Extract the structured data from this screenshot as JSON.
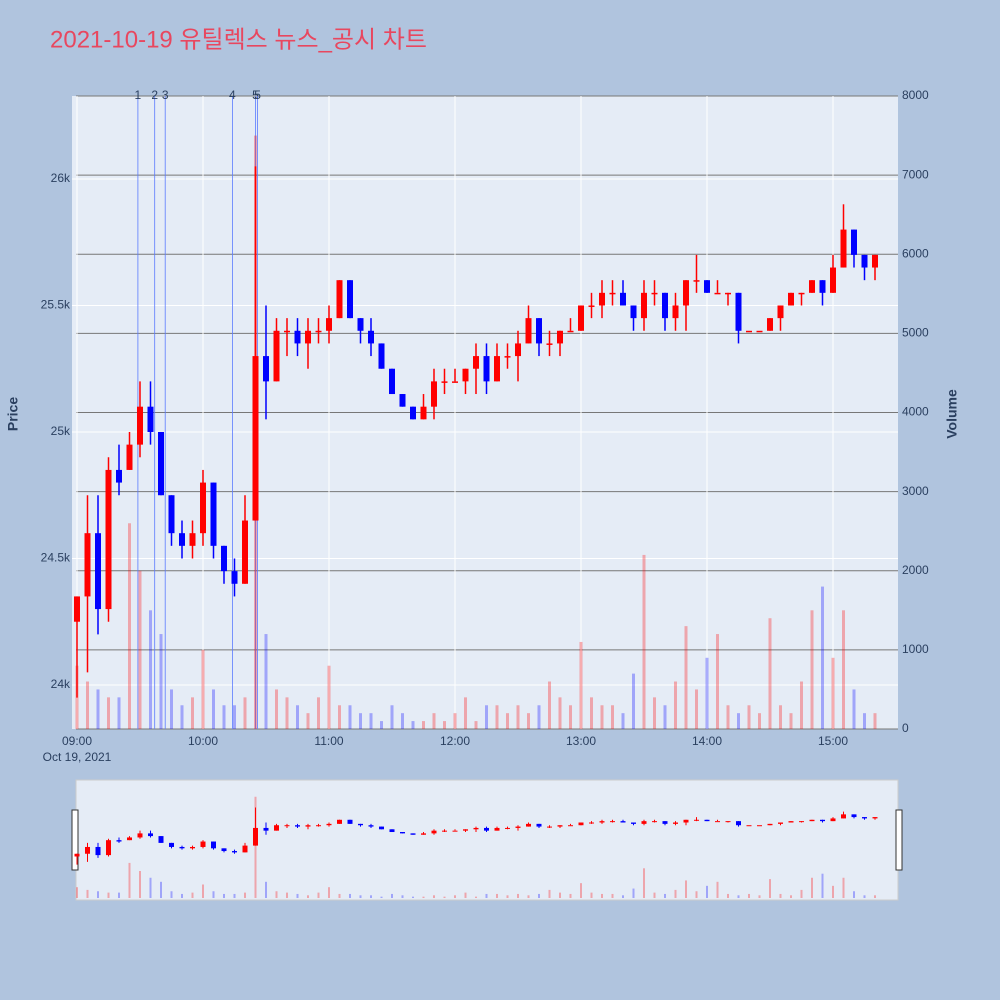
{
  "chart_data": {
    "type": "candlestick",
    "title": "2021-10-19 유틸렉스 뉴스_공시 차트",
    "y_label": "Price",
    "y2_label": "Volume",
    "x_date_label": "Oct 19, 2021",
    "increasing_color": "#ff0000",
    "decreasing_color": "#0000ff",
    "x": [
      "09:00",
      "09:05",
      "09:10",
      "09:15",
      "09:20",
      "09:25",
      "09:30",
      "09:35",
      "09:40",
      "09:45",
      "09:50",
      "09:55",
      "10:00",
      "10:05",
      "10:10",
      "10:15",
      "10:20",
      "10:25",
      "10:30",
      "10:35",
      "10:40",
      "10:45",
      "10:50",
      "10:55",
      "11:00",
      "11:05",
      "11:10",
      "11:15",
      "11:20",
      "11:25",
      "11:30",
      "11:35",
      "11:40",
      "11:45",
      "11:50",
      "11:55",
      "12:00",
      "12:05",
      "12:10",
      "12:15",
      "12:20",
      "12:25",
      "12:30",
      "12:35",
      "12:40",
      "12:45",
      "12:50",
      "12:55",
      "13:00",
      "13:05",
      "13:10",
      "13:15",
      "13:20",
      "13:25",
      "13:30",
      "13:35",
      "13:40",
      "13:45",
      "13:50",
      "13:55",
      "14:00",
      "14:05",
      "14:10",
      "14:15",
      "14:20",
      "14:25",
      "14:30",
      "14:35",
      "14:40",
      "14:45",
      "14:50",
      "14:55",
      "15:00",
      "15:05",
      "15:10",
      "15:15",
      "15:20"
    ],
    "open": [
      24250,
      24350,
      24600,
      24300,
      24850,
      24850,
      24950,
      25100,
      25000,
      24750,
      24600,
      24550,
      24600,
      24800,
      24550,
      24450,
      24400,
      24650,
      25300,
      25200,
      25400,
      25400,
      25350,
      25400,
      25400,
      25450,
      25600,
      25450,
      25400,
      25350,
      25250,
      25150,
      25100,
      25050,
      25100,
      25200,
      25200,
      25200,
      25250,
      25300,
      25200,
      25300,
      25300,
      25350,
      25450,
      25350,
      25350,
      25400,
      25400,
      25500,
      25500,
      25550,
      25550,
      25500,
      25450,
      25550,
      25550,
      25450,
      25500,
      25600,
      25600,
      25550,
      25550,
      25550,
      25400,
      25400,
      25400,
      25450,
      25500,
      25550,
      25550,
      25600,
      25550,
      25650,
      25800,
      25700,
      25650
    ],
    "high": [
      24350,
      24750,
      24750,
      24900,
      24950,
      25000,
      25200,
      25200,
      25000,
      24750,
      24650,
      24650,
      24850,
      24800,
      24550,
      24500,
      24750,
      26050,
      25500,
      25450,
      25450,
      25450,
      25450,
      25450,
      25500,
      25600,
      25600,
      25450,
      25450,
      25350,
      25250,
      25150,
      25100,
      25150,
      25250,
      25250,
      25250,
      25250,
      25350,
      25350,
      25350,
      25350,
      25400,
      25500,
      25450,
      25400,
      25400,
      25450,
      25500,
      25550,
      25600,
      25600,
      25600,
      25500,
      25600,
      25600,
      25550,
      25550,
      25600,
      25700,
      25600,
      25600,
      25550,
      25550,
      25400,
      25400,
      25450,
      25500,
      25550,
      25550,
      25600,
      25600,
      25700,
      25900,
      25800,
      25700,
      25700
    ],
    "low": [
      23950,
      24050,
      24200,
      24250,
      24750,
      24850,
      24900,
      24950,
      24750,
      24550,
      24500,
      24500,
      24550,
      24500,
      24400,
      24350,
      24400,
      24650,
      25050,
      25200,
      25300,
      25300,
      25250,
      25350,
      25350,
      25450,
      25450,
      25350,
      25300,
      25250,
      25150,
      25100,
      25050,
      25050,
      25050,
      25150,
      25200,
      25150,
      25150,
      25150,
      25200,
      25250,
      25200,
      25350,
      25300,
      25300,
      25300,
      25400,
      25400,
      25450,
      25450,
      25500,
      25500,
      25400,
      25400,
      25500,
      25400,
      25400,
      25400,
      25550,
      25550,
      25550,
      25500,
      25350,
      25400,
      25400,
      25400,
      25400,
      25500,
      25500,
      25550,
      25500,
      25550,
      25650,
      25650,
      25600,
      25600
    ],
    "close": [
      24350,
      24600,
      24300,
      24850,
      24800,
      24950,
      25100,
      25000,
      24750,
      24600,
      24550,
      24600,
      24800,
      24550,
      24450,
      24400,
      24650,
      25300,
      25200,
      25400,
      25400,
      25350,
      25400,
      25400,
      25450,
      25600,
      25450,
      25400,
      25350,
      25250,
      25150,
      25100,
      25050,
      25100,
      25200,
      25200,
      25200,
      25250,
      25300,
      25200,
      25300,
      25300,
      25350,
      25450,
      25350,
      25350,
      25400,
      25400,
      25500,
      25500,
      25550,
      25550,
      25500,
      25450,
      25550,
      25550,
      25450,
      25500,
      25600,
      25600,
      25550,
      25550,
      25550,
      25400,
      25400,
      25400,
      25450,
      25500,
      25550,
      25550,
      25600,
      25550,
      25650,
      25800,
      25700,
      25650,
      25700
    ],
    "volume": [
      800,
      600,
      500,
      400,
      400,
      2600,
      2000,
      1500,
      1200,
      500,
      300,
      400,
      1000,
      500,
      300,
      300,
      400,
      7500,
      1200,
      500,
      400,
      300,
      200,
      400,
      800,
      300,
      300,
      200,
      200,
      100,
      300,
      200,
      100,
      100,
      200,
      100,
      200,
      400,
      100,
      300,
      300,
      200,
      300,
      200,
      300,
      600,
      400,
      300,
      1100,
      400,
      300,
      300,
      200,
      700,
      2200,
      400,
      300,
      600,
      1300,
      500,
      900,
      1200,
      300,
      200,
      300,
      200,
      1400,
      300,
      200,
      600,
      1500,
      1800,
      900,
      1500,
      500,
      200,
      200
    ],
    "news": [
      {
        "x": "09:29",
        "label": "1"
      },
      {
        "x": "09:37",
        "label": "2"
      },
      {
        "x": "09:42",
        "label": "3"
      },
      {
        "x": "10:14",
        "label": "4"
      },
      {
        "x": "10:25",
        "label": "5"
      },
      {
        "x": "10:26",
        "label": "5"
      }
    ],
    "xticks": [
      "09:00",
      "10:00",
      "11:00",
      "12:00",
      "13:00",
      "14:00",
      "15:00"
    ],
    "ylim": [
      23826,
      26328
    ],
    "yticks": [
      {
        "value": 24000,
        "label": "24k"
      },
      {
        "value": 24500,
        "label": "24.5k"
      },
      {
        "value": 25000,
        "label": "25k"
      },
      {
        "value": 25500,
        "label": "25.5k"
      },
      {
        "value": 26000,
        "label": "26k"
      }
    ],
    "y2lim": [
      0,
      8000
    ],
    "y2ticks": [
      0,
      1000,
      2000,
      3000,
      4000,
      5000,
      6000,
      7000,
      8000
    ],
    "grid": true
  }
}
